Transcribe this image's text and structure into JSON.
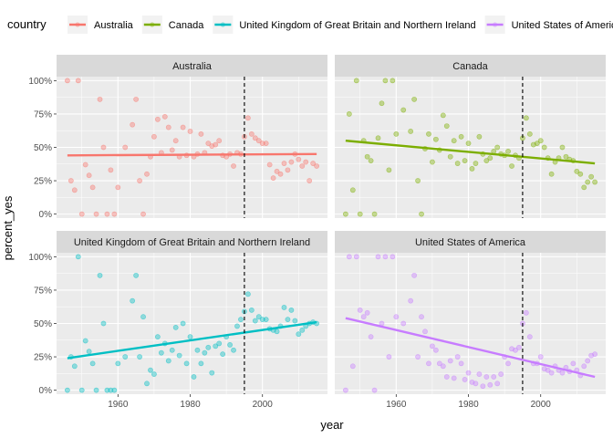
{
  "chart_data": {
    "type": "scatter",
    "xlabel": "year",
    "ylabel": "percent_yes",
    "legend_title": "country",
    "legend_position": "top",
    "grid": true,
    "xlim": [
      1943,
      2018
    ],
    "ylim": [
      -0.03,
      1.03
    ],
    "x_ticks": [
      1960,
      1980,
      2000
    ],
    "x_tick_labels": [
      "1960",
      "1980",
      "2000"
    ],
    "y_ticks": [
      0,
      0.25,
      0.5,
      0.75,
      1.0
    ],
    "y_tick_labels": [
      "0%",
      "25%",
      "50%",
      "75%",
      "100%"
    ],
    "vline_x": 1995,
    "colors": {
      "panel_bg": "#ebebeb",
      "strip_bg": "#d9d9d9",
      "grid": "#ffffff",
      "vline": "#000000"
    },
    "series": [
      {
        "name": "Australia",
        "color": "#f8766d",
        "trend": [
          [
            1946,
            0.44
          ],
          [
            2015,
            0.45
          ]
        ],
        "points": [
          [
            1946,
            1.0
          ],
          [
            1947,
            0.25
          ],
          [
            1948,
            0.18
          ],
          [
            1949,
            1.0
          ],
          [
            1950,
            0.0
          ],
          [
            1951,
            0.37
          ],
          [
            1952,
            0.29
          ],
          [
            1953,
            0.2
          ],
          [
            1954,
            0.0
          ],
          [
            1955,
            0.86
          ],
          [
            1956,
            0.5
          ],
          [
            1957,
            0.0
          ],
          [
            1958,
            0.33
          ],
          [
            1959,
            0.0
          ],
          [
            1960,
            0.2
          ],
          [
            1962,
            0.5
          ],
          [
            1964,
            0.67
          ],
          [
            1965,
            0.86
          ],
          [
            1966,
            0.25
          ],
          [
            1967,
            0.0
          ],
          [
            1968,
            0.3
          ],
          [
            1969,
            0.43
          ],
          [
            1970,
            0.58
          ],
          [
            1971,
            0.71
          ],
          [
            1972,
            0.46
          ],
          [
            1973,
            0.73
          ],
          [
            1974,
            0.65
          ],
          [
            1975,
            0.48
          ],
          [
            1976,
            0.55
          ],
          [
            1977,
            0.43
          ],
          [
            1978,
            0.65
          ],
          [
            1979,
            0.44
          ],
          [
            1980,
            0.62
          ],
          [
            1981,
            0.43
          ],
          [
            1982,
            0.45
          ],
          [
            1983,
            0.6
          ],
          [
            1984,
            0.46
          ],
          [
            1985,
            0.53
          ],
          [
            1986,
            0.51
          ],
          [
            1987,
            0.52
          ],
          [
            1988,
            0.55
          ],
          [
            1989,
            0.44
          ],
          [
            1990,
            0.43
          ],
          [
            1991,
            0.45
          ],
          [
            1992,
            0.36
          ],
          [
            1993,
            0.46
          ],
          [
            1994,
            0.45
          ],
          [
            1995,
            0.58
          ],
          [
            1996,
            0.72
          ],
          [
            1997,
            0.6
          ],
          [
            1998,
            0.57
          ],
          [
            1999,
            0.55
          ],
          [
            2000,
            0.53
          ],
          [
            2001,
            0.53
          ],
          [
            2002,
            0.37
          ],
          [
            2003,
            0.27
          ],
          [
            2004,
            0.32
          ],
          [
            2005,
            0.3
          ],
          [
            2006,
            0.38
          ],
          [
            2007,
            0.33
          ],
          [
            2008,
            0.39
          ],
          [
            2009,
            0.45
          ],
          [
            2010,
            0.41
          ],
          [
            2011,
            0.36
          ],
          [
            2012,
            0.39
          ],
          [
            2013,
            0.25
          ],
          [
            2014,
            0.38
          ],
          [
            2015,
            0.36
          ]
        ]
      },
      {
        "name": "Canada",
        "color": "#7cae00",
        "trend": [
          [
            1946,
            0.55
          ],
          [
            2015,
            0.38
          ]
        ],
        "points": [
          [
            1946,
            0.0
          ],
          [
            1947,
            0.75
          ],
          [
            1948,
            0.18
          ],
          [
            1949,
            1.0
          ],
          [
            1950,
            0.0
          ],
          [
            1951,
            0.55
          ],
          [
            1952,
            0.43
          ],
          [
            1953,
            0.4
          ],
          [
            1954,
            0.0
          ],
          [
            1955,
            0.57
          ],
          [
            1956,
            0.83
          ],
          [
            1957,
            1.0
          ],
          [
            1958,
            0.33
          ],
          [
            1959,
            1.0
          ],
          [
            1960,
            0.6
          ],
          [
            1962,
            0.78
          ],
          [
            1964,
            0.62
          ],
          [
            1965,
            0.86
          ],
          [
            1966,
            0.25
          ],
          [
            1967,
            0.0
          ],
          [
            1968,
            0.49
          ],
          [
            1969,
            0.6
          ],
          [
            1970,
            0.39
          ],
          [
            1971,
            0.56
          ],
          [
            1972,
            0.48
          ],
          [
            1973,
            0.74
          ],
          [
            1974,
            0.66
          ],
          [
            1975,
            0.43
          ],
          [
            1976,
            0.55
          ],
          [
            1977,
            0.38
          ],
          [
            1978,
            0.58
          ],
          [
            1979,
            0.4
          ],
          [
            1980,
            0.53
          ],
          [
            1981,
            0.34
          ],
          [
            1982,
            0.38
          ],
          [
            1983,
            0.58
          ],
          [
            1984,
            0.45
          ],
          [
            1985,
            0.4
          ],
          [
            1986,
            0.42
          ],
          [
            1987,
            0.47
          ],
          [
            1988,
            0.5
          ],
          [
            1989,
            0.45
          ],
          [
            1990,
            0.44
          ],
          [
            1991,
            0.47
          ],
          [
            1992,
            0.36
          ],
          [
            1993,
            0.44
          ],
          [
            1994,
            0.42
          ],
          [
            1995,
            0.57
          ],
          [
            1996,
            0.72
          ],
          [
            1997,
            0.6
          ],
          [
            1998,
            0.52
          ],
          [
            1999,
            0.53
          ],
          [
            2000,
            0.55
          ],
          [
            2001,
            0.5
          ],
          [
            2002,
            0.42
          ],
          [
            2003,
            0.3
          ],
          [
            2004,
            0.39
          ],
          [
            2005,
            0.42
          ],
          [
            2006,
            0.5
          ],
          [
            2007,
            0.43
          ],
          [
            2008,
            0.41
          ],
          [
            2009,
            0.4
          ],
          [
            2010,
            0.32
          ],
          [
            2011,
            0.3
          ],
          [
            2012,
            0.2
          ],
          [
            2013,
            0.24
          ],
          [
            2014,
            0.28
          ],
          [
            2015,
            0.24
          ]
        ]
      },
      {
        "name": "United Kingdom of Great Britain and Northern Ireland",
        "color": "#00bfc4",
        "trend": [
          [
            1946,
            0.24
          ],
          [
            2015,
            0.51
          ]
        ],
        "points": [
          [
            1946,
            0.0
          ],
          [
            1947,
            0.25
          ],
          [
            1948,
            0.18
          ],
          [
            1949,
            1.0
          ],
          [
            1950,
            0.0
          ],
          [
            1951,
            0.37
          ],
          [
            1952,
            0.29
          ],
          [
            1953,
            0.2
          ],
          [
            1954,
            0.0
          ],
          [
            1955,
            0.86
          ],
          [
            1956,
            0.5
          ],
          [
            1957,
            0.0
          ],
          [
            1958,
            0.0
          ],
          [
            1959,
            0.0
          ],
          [
            1960,
            0.2
          ],
          [
            1962,
            0.25
          ],
          [
            1964,
            0.67
          ],
          [
            1965,
            0.86
          ],
          [
            1966,
            0.25
          ],
          [
            1967,
            0.55
          ],
          [
            1968,
            0.05
          ],
          [
            1969,
            0.15
          ],
          [
            1970,
            0.12
          ],
          [
            1971,
            0.4
          ],
          [
            1972,
            0.28
          ],
          [
            1973,
            0.35
          ],
          [
            1974,
            0.22
          ],
          [
            1975,
            0.3
          ],
          [
            1976,
            0.47
          ],
          [
            1977,
            0.26
          ],
          [
            1978,
            0.5
          ],
          [
            1979,
            0.2
          ],
          [
            1980,
            0.4
          ],
          [
            1981,
            0.1
          ],
          [
            1982,
            0.3
          ],
          [
            1983,
            0.2
          ],
          [
            1984,
            0.28
          ],
          [
            1985,
            0.32
          ],
          [
            1986,
            0.13
          ],
          [
            1987,
            0.33
          ],
          [
            1988,
            0.35
          ],
          [
            1989,
            0.27
          ],
          [
            1990,
            0.4
          ],
          [
            1991,
            0.34
          ],
          [
            1992,
            0.3
          ],
          [
            1993,
            0.48
          ],
          [
            1994,
            0.53
          ],
          [
            1995,
            0.59
          ],
          [
            1996,
            0.72
          ],
          [
            1997,
            0.6
          ],
          [
            1998,
            0.52
          ],
          [
            1999,
            0.55
          ],
          [
            2000,
            0.53
          ],
          [
            2001,
            0.53
          ],
          [
            2002,
            0.46
          ],
          [
            2003,
            0.45
          ],
          [
            2004,
            0.44
          ],
          [
            2005,
            0.48
          ],
          [
            2006,
            0.62
          ],
          [
            2007,
            0.53
          ],
          [
            2008,
            0.6
          ],
          [
            2009,
            0.52
          ],
          [
            2010,
            0.42
          ],
          [
            2011,
            0.45
          ],
          [
            2012,
            0.48
          ],
          [
            2013,
            0.5
          ],
          [
            2014,
            0.51
          ],
          [
            2015,
            0.5
          ]
        ]
      },
      {
        "name": "United States of America",
        "color": "#c77cff",
        "trend": [
          [
            1946,
            0.54
          ],
          [
            2015,
            0.1
          ]
        ],
        "points": [
          [
            1946,
            0.0
          ],
          [
            1947,
            1.0
          ],
          [
            1948,
            0.18
          ],
          [
            1949,
            1.0
          ],
          [
            1950,
            0.6
          ],
          [
            1951,
            0.55
          ],
          [
            1952,
            0.58
          ],
          [
            1953,
            0.4
          ],
          [
            1954,
            0.0
          ],
          [
            1955,
            1.0
          ],
          [
            1956,
            0.5
          ],
          [
            1957,
            1.0
          ],
          [
            1958,
            0.25
          ],
          [
            1959,
            1.0
          ],
          [
            1960,
            0.55
          ],
          [
            1962,
            0.5
          ],
          [
            1964,
            0.67
          ],
          [
            1965,
            0.86
          ],
          [
            1966,
            0.25
          ],
          [
            1967,
            0.55
          ],
          [
            1968,
            0.44
          ],
          [
            1969,
            0.2
          ],
          [
            1970,
            0.33
          ],
          [
            1971,
            0.3
          ],
          [
            1972,
            0.2
          ],
          [
            1973,
            0.18
          ],
          [
            1974,
            0.1
          ],
          [
            1975,
            0.22
          ],
          [
            1976,
            0.09
          ],
          [
            1977,
            0.25
          ],
          [
            1978,
            0.2
          ],
          [
            1979,
            0.08
          ],
          [
            1980,
            0.13
          ],
          [
            1981,
            0.06
          ],
          [
            1982,
            0.05
          ],
          [
            1983,
            0.12
          ],
          [
            1984,
            0.03
          ],
          [
            1985,
            0.1
          ],
          [
            1986,
            0.04
          ],
          [
            1987,
            0.1
          ],
          [
            1988,
            0.05
          ],
          [
            1989,
            0.12
          ],
          [
            1990,
            0.25
          ],
          [
            1991,
            0.2
          ],
          [
            1992,
            0.31
          ],
          [
            1993,
            0.3
          ],
          [
            1994,
            0.32
          ],
          [
            1995,
            0.5
          ],
          [
            1996,
            0.58
          ],
          [
            1997,
            0.4
          ],
          [
            1998,
            0.2
          ],
          [
            1999,
            0.2
          ],
          [
            2000,
            0.25
          ],
          [
            2001,
            0.16
          ],
          [
            2002,
            0.15
          ],
          [
            2003,
            0.13
          ],
          [
            2004,
            0.18
          ],
          [
            2005,
            0.15
          ],
          [
            2006,
            0.13
          ],
          [
            2007,
            0.17
          ],
          [
            2008,
            0.14
          ],
          [
            2009,
            0.2
          ],
          [
            2010,
            0.15
          ],
          [
            2011,
            0.11
          ],
          [
            2012,
            0.18
          ],
          [
            2013,
            0.22
          ],
          [
            2014,
            0.26
          ],
          [
            2015,
            0.27
          ]
        ]
      }
    ]
  }
}
